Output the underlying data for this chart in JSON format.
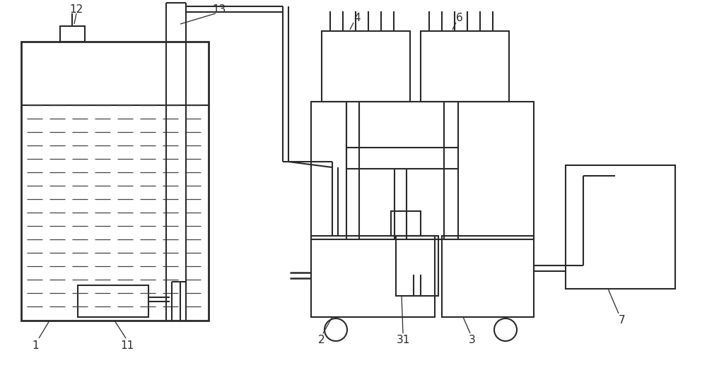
{
  "bg_color": "#ffffff",
  "line_color": "#2a2a2a",
  "lw": 1.5,
  "figsize": [
    10.0,
    5.24
  ],
  "dpi": 100
}
